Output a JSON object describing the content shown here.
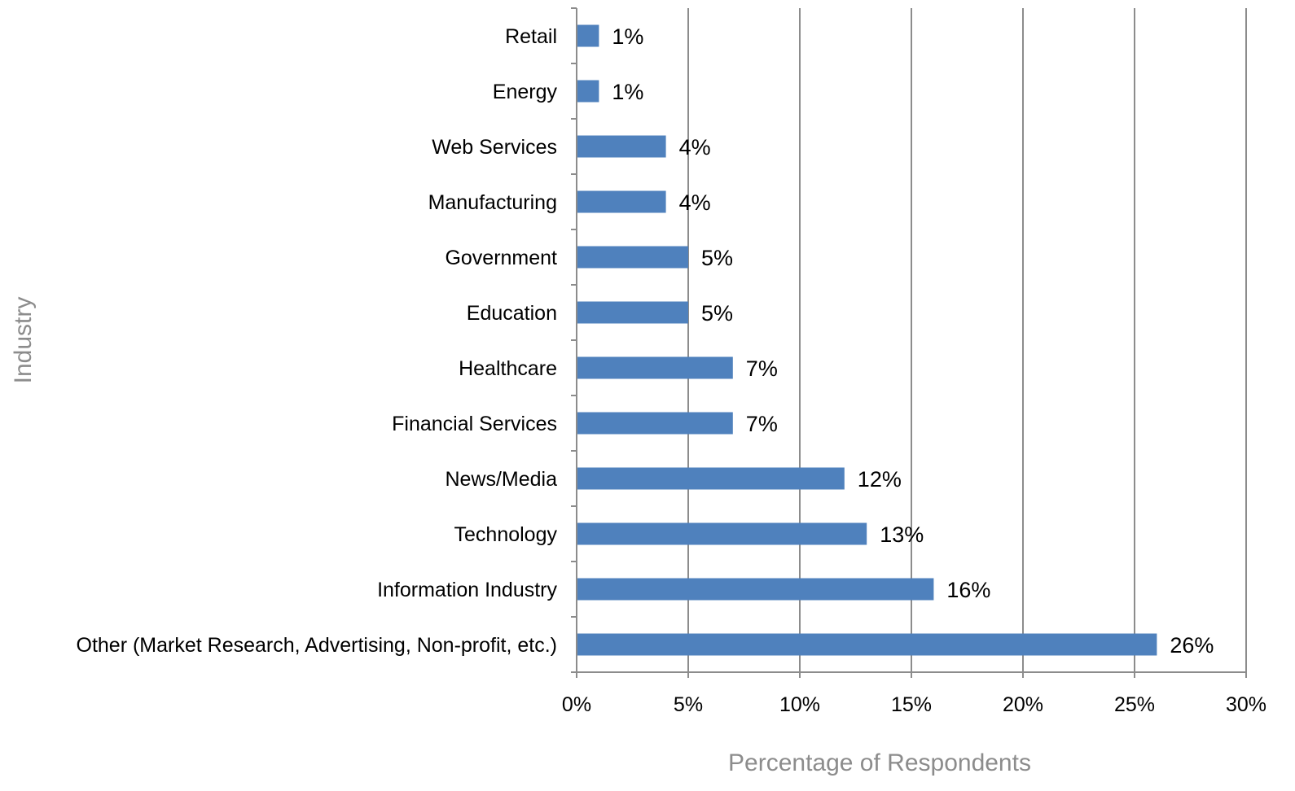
{
  "chart_data": {
    "type": "bar",
    "orientation": "horizontal",
    "categories": [
      "Retail",
      "Energy",
      "Web Services",
      "Manufacturing",
      "Government",
      "Education",
      "Healthcare",
      "Financial Services",
      "News/Media",
      "Technology",
      "Information Industry",
      "Other (Market Research, Advertising, Non-profit, etc.)"
    ],
    "values": [
      1,
      1,
      4,
      4,
      5,
      5,
      7,
      7,
      12,
      13,
      16,
      26
    ],
    "data_labels": [
      "1%",
      "1%",
      "4%",
      "4%",
      "5%",
      "5%",
      "7%",
      "7%",
      "12%",
      "13%",
      "16%",
      "26%"
    ],
    "title": "",
    "xlabel": "Percentage of Respondents",
    "ylabel": "Industry",
    "xlim": [
      0,
      30
    ],
    "x_ticks": [
      0,
      5,
      10,
      15,
      20,
      25,
      30
    ],
    "x_tick_labels": [
      "0%",
      "5%",
      "10%",
      "15%",
      "20%",
      "25%",
      "30%"
    ],
    "grid": "vertical",
    "legend": "none",
    "bar_color": "#4F81BD",
    "grid_color": "#8C8C8C",
    "axis_title_color": "#8C8C8C"
  }
}
